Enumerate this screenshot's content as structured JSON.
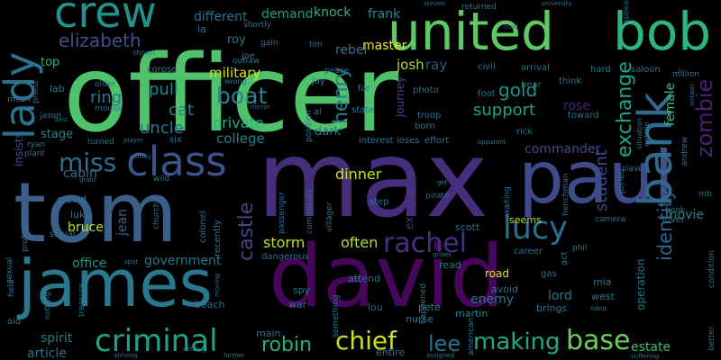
{
  "words": [
    {
      "text": "officer",
      "color": "#4ec36b"
    },
    {
      "text": "max",
      "color": "#472e7c"
    },
    {
      "text": "tom",
      "color": "#3b5f8a"
    },
    {
      "text": "david",
      "color": "#46075a"
    },
    {
      "text": "paul",
      "color": "#3f4a89"
    },
    {
      "text": "james",
      "color": "#2a788e"
    },
    {
      "text": "united",
      "color": "#5ec962"
    },
    {
      "text": "bob",
      "color": "#2fb47c"
    },
    {
      "text": "crew",
      "color": "#21918c"
    },
    {
      "text": "class",
      "color": "#3a548c"
    },
    {
      "text": "bank",
      "color": "#31688e"
    },
    {
      "text": "lady",
      "color": "#2c728e"
    },
    {
      "text": "criminal",
      "color": "#20a386"
    },
    {
      "text": "rachel",
      "color": "#46307e"
    },
    {
      "text": "lucy",
      "color": "#2d708e"
    },
    {
      "text": "chief",
      "color": "#c8e020"
    },
    {
      "text": "making",
      "color": "#22a884"
    },
    {
      "text": "base",
      "color": "#6ccd5a"
    },
    {
      "text": "miss",
      "color": "#2e6d8e"
    },
    {
      "text": "boat",
      "color": "#26828e"
    },
    {
      "text": "robin",
      "color": "#27ad81"
    },
    {
      "text": "castle",
      "color": "#404688"
    },
    {
      "text": "identity",
      "color": "#32658e"
    },
    {
      "text": "zombie",
      "color": "#482273"
    },
    {
      "text": "exchange",
      "color": "#20a386"
    },
    {
      "text": "elizabeth",
      "color": "#3b528b"
    },
    {
      "text": "henry",
      "color": "#29798e"
    },
    {
      "text": "gold",
      "color": "#20928c"
    },
    {
      "text": "lee",
      "color": "#2c728e"
    },
    {
      "text": "support",
      "color": "#1fa188"
    },
    {
      "text": "student",
      "color": "#3e4989"
    },
    {
      "text": "uncle",
      "color": "#2c738e"
    },
    {
      "text": "cat",
      "color": "#25838e"
    },
    {
      "text": "pull",
      "color": "#238a8d"
    },
    {
      "text": "ring",
      "color": "#2a768e"
    },
    {
      "text": "storm",
      "color": "#bddf26"
    },
    {
      "text": "often",
      "color": "#b5de2b"
    },
    {
      "text": "dinner",
      "color": "#c5e021"
    },
    {
      "text": "private",
      "color": "#28ae80"
    },
    {
      "text": "college",
      "color": "#26828e"
    },
    {
      "text": "master",
      "color": "#f1e51d"
    },
    {
      "text": "military",
      "color": "#d8e219"
    },
    {
      "text": "josh",
      "color": "#addc30"
    },
    {
      "text": "ray",
      "color": "#3b528b"
    },
    {
      "text": "rebel",
      "color": "#2d718e"
    },
    {
      "text": "government",
      "color": "#2a778e"
    },
    {
      "text": "office",
      "color": "#20928c"
    },
    {
      "text": "spirit",
      "color": "#2a768e"
    },
    {
      "text": "article",
      "color": "#2d708e"
    },
    {
      "text": "commander",
      "color": "#3e4c8a"
    },
    {
      "text": "lord",
      "color": "#2c738e"
    },
    {
      "text": "enemy",
      "color": "#2a778e"
    },
    {
      "text": "estate",
      "color": "#3dbc74"
    },
    {
      "text": "bruce",
      "color": "#bade28"
    },
    {
      "text": "jean",
      "color": "#31688e"
    },
    {
      "text": "cabin",
      "color": "#2c728e"
    },
    {
      "text": "movie",
      "color": "#26828e"
    },
    {
      "text": "female",
      "color": "#3dbc74"
    },
    {
      "text": "rose",
      "color": "#482173"
    },
    {
      "text": "demand",
      "color": "#1f9f88"
    },
    {
      "text": "knock",
      "color": "#2fb47c"
    },
    {
      "text": "frank",
      "color": "#25838e"
    },
    {
      "text": "different",
      "color": "#2c728e"
    },
    {
      "text": "insists",
      "color": "#3b528b"
    },
    {
      "text": "stage",
      "color": "#26828e"
    },
    {
      "text": "top",
      "color": "#2fb47c"
    },
    {
      "text": "roy",
      "color": "#2c738e"
    },
    {
      "text": "dark",
      "color": "#2c738e"
    },
    {
      "text": "experience",
      "color": "#443983"
    },
    {
      "text": "operation",
      "color": "#2a768e"
    },
    {
      "text": "journey",
      "color": "#3f4788"
    },
    {
      "text": "lab",
      "color": "#2c738e"
    },
    {
      "text": "crowd",
      "color": "#2a778e"
    },
    {
      "text": "luke",
      "color": "#2c728e"
    },
    {
      "text": "scott",
      "color": "#2c728e"
    },
    {
      "text": "seems",
      "color": "#addc30"
    },
    {
      "text": "road",
      "color": "#e5e419"
    },
    {
      "text": "mia",
      "color": "#2c728e"
    },
    {
      "text": "west",
      "color": "#2c728e"
    },
    {
      "text": "nurse",
      "color": "#2c738e"
    },
    {
      "text": "martin",
      "color": "#26828e"
    },
    {
      "text": "pete",
      "color": "#26828e"
    },
    {
      "text": "lou",
      "color": "#3b528b"
    },
    {
      "text": "war",
      "color": "#2c728e"
    },
    {
      "text": "spy",
      "color": "#2c738e"
    },
    {
      "text": "beach",
      "color": "#2c728e"
    },
    {
      "text": "main",
      "color": "#2c728e"
    },
    {
      "text": "entire",
      "color": "#2c728e"
    },
    {
      "text": "attend",
      "color": "#2c728e"
    },
    {
      "text": "avoid",
      "color": "#2c728e"
    },
    {
      "text": "brings",
      "color": "#2c728e"
    },
    {
      "text": "career",
      "color": "#2c728e"
    },
    {
      "text": "dangerous",
      "color": "#2c728e"
    },
    {
      "text": "read",
      "color": "#2c728e"
    },
    {
      "text": "colonel",
      "color": "#2c728e"
    },
    {
      "text": "recently",
      "color": "#2c728e"
    },
    {
      "text": "passenger",
      "color": "#2c728e"
    },
    {
      "text": "community",
      "color": "#2c728e"
    },
    {
      "text": "photo",
      "color": "#2c728e"
    },
    {
      "text": "born",
      "color": "#2c728e"
    },
    {
      "text": "troop",
      "color": "#2c728e"
    },
    {
      "text": "effort",
      "color": "#2c728e"
    },
    {
      "text": "position",
      "color": "#2c728e"
    },
    {
      "text": "interest",
      "color": "#2c728e"
    },
    {
      "text": "loses",
      "color": "#2c728e"
    },
    {
      "text": "rick",
      "color": "#2c728e"
    },
    {
      "text": "state",
      "color": "#2c728e"
    },
    {
      "text": "al",
      "color": "#2c728e"
    },
    {
      "text": "far",
      "color": "#2c728e"
    },
    {
      "text": "jay",
      "color": "#2c728e"
    },
    {
      "text": "peace",
      "color": "#2c728e"
    },
    {
      "text": "step",
      "color": "#2c728e"
    },
    {
      "text": "pirate",
      "color": "#2c728e"
    },
    {
      "text": "villager",
      "color": "#2c728e"
    },
    {
      "text": "arrival",
      "color": "#2c728e"
    },
    {
      "text": "civil",
      "color": "#2c728e"
    },
    {
      "text": "returned",
      "color": "#2c728e"
    },
    {
      "text": "saloon",
      "color": "#2c728e"
    },
    {
      "text": "million",
      "color": "#2c728e"
    },
    {
      "text": "hard",
      "color": "#2c728e"
    },
    {
      "text": "bear",
      "color": "#2c728e"
    },
    {
      "text": "think",
      "color": "#2c728e"
    },
    {
      "text": "foot",
      "color": "#2c728e"
    },
    {
      "text": "toward",
      "color": "#2c728e"
    },
    {
      "text": "situation",
      "color": "#2c728e"
    },
    {
      "text": "natalie",
      "color": "#2c728e"
    },
    {
      "text": "slave",
      "color": "#2c728e"
    },
    {
      "text": "cover",
      "color": "#2c728e"
    },
    {
      "text": "andrew",
      "color": "#2c728e"
    },
    {
      "text": "henchman",
      "color": "#2c728e"
    },
    {
      "text": "joined",
      "color": "#2c728e"
    },
    {
      "text": "johnny",
      "color": "#2c728e"
    },
    {
      "text": "hook",
      "color": "#2c728e"
    },
    {
      "text": "lover",
      "color": "#2c728e"
    },
    {
      "text": "rob",
      "color": "#2c728e"
    },
    {
      "text": "camera",
      "color": "#2c728e"
    },
    {
      "text": "waiting",
      "color": "#2c728e"
    },
    {
      "text": "phil",
      "color": "#2c728e"
    },
    {
      "text": "gas",
      "color": "#2c728e"
    },
    {
      "text": "grows",
      "color": "#2c728e"
    },
    {
      "text": "happened",
      "color": "#2c728e"
    },
    {
      "text": "american",
      "color": "#2c728e"
    },
    {
      "text": "something",
      "color": "#2c728e"
    },
    {
      "text": "assigned",
      "color": "#2c728e"
    },
    {
      "text": "farmer",
      "color": "#2c728e"
    },
    {
      "text": "setting",
      "color": "#2c728e"
    },
    {
      "text": "arriving",
      "color": "#2c728e"
    },
    {
      "text": "nothing",
      "color": "#2c728e"
    },
    {
      "text": "treasure",
      "color": "#2c728e"
    },
    {
      "text": "moving",
      "color": "#2c728e"
    },
    {
      "text": "held",
      "color": "#2c728e"
    },
    {
      "text": "aid",
      "color": "#2c728e"
    },
    {
      "text": "jason",
      "color": "#2c728e"
    },
    {
      "text": "sexual",
      "color": "#2c728e"
    },
    {
      "text": "social",
      "color": "#2c728e"
    },
    {
      "text": "professor",
      "color": "#2c728e"
    },
    {
      "text": "plant",
      "color": "#2c728e"
    },
    {
      "text": "ryan",
      "color": "#2c728e"
    },
    {
      "text": "mean",
      "color": "#2c728e"
    },
    {
      "text": "priest",
      "color": "#2c728e"
    },
    {
      "text": "older",
      "color": "#2c728e"
    },
    {
      "text": "mouse",
      "color": "#2c728e"
    },
    {
      "text": "turned",
      "color": "#2c728e"
    },
    {
      "text": "player",
      "color": "#2c728e"
    },
    {
      "text": "six",
      "color": "#2c728e"
    },
    {
      "text": "wild",
      "color": "#2c728e"
    },
    {
      "text": "grant",
      "color": "#2c728e"
    },
    {
      "text": "church",
      "color": "#2c728e"
    },
    {
      "text": "spot",
      "color": "#2c728e"
    },
    {
      "text": "corpse",
      "color": "#2c728e"
    },
    {
      "text": "shown",
      "color": "#2c728e"
    },
    {
      "text": "wrong",
      "color": "#2c728e"
    },
    {
      "text": "mirror",
      "color": "#2c728e"
    },
    {
      "text": "outlaw",
      "color": "#2c728e"
    },
    {
      "text": "gain",
      "color": "#2c728e"
    },
    {
      "text": "shortly",
      "color": "#2c728e"
    },
    {
      "text": "joe",
      "color": "#2c728e"
    },
    {
      "text": "tim",
      "color": "#2c728e"
    },
    {
      "text": "la",
      "color": "#2c728e"
    },
    {
      "text": "steven",
      "color": "#2c728e"
    },
    {
      "text": "university",
      "color": "#2c728e"
    },
    {
      "text": "cold",
      "color": "#2c728e"
    },
    {
      "text": "appear",
      "color": "#2c728e"
    },
    {
      "text": "answer",
      "color": "#2c728e"
    },
    {
      "text": "ii",
      "color": "#2c728e"
    },
    {
      "text": "act",
      "color": "#2c728e"
    },
    {
      "text": "condition",
      "color": "#2c728e"
    },
    {
      "text": "better",
      "color": "#2c728e"
    },
    {
      "text": "suffering",
      "color": "#2c728e"
    },
    {
      "text": "robot",
      "color": "#2c728e"
    },
    {
      "text": "apparent",
      "color": "#2c728e"
    },
    {
      "text": "get",
      "color": "#2c728e"
    },
    {
      "text": "bed",
      "color": "#2c728e"
    }
  ]
}
